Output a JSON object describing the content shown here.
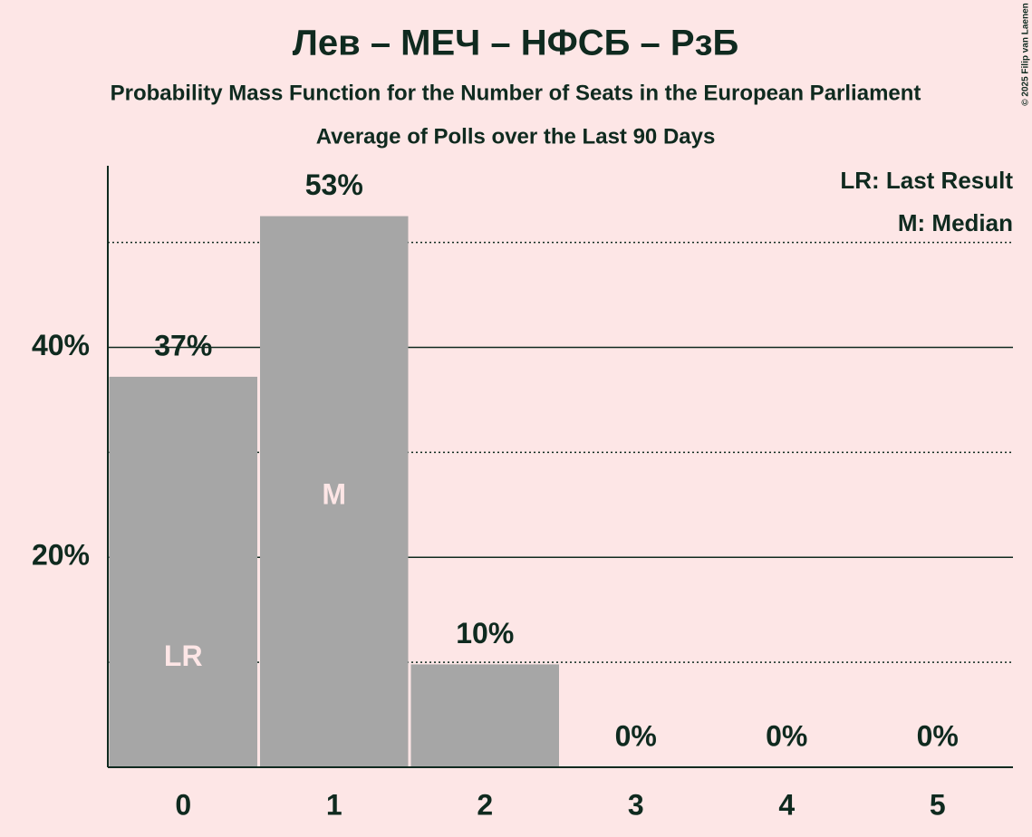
{
  "chart_data": {
    "type": "bar",
    "title": "Лев – МЕЧ – НФСБ – РзБ",
    "subtitle": "Probability Mass Function for the Number of Seats in the European Parliament",
    "subtitle2": "Average of Polls over the Last 90 Days",
    "categories": [
      "0",
      "1",
      "2",
      "3",
      "4",
      "5"
    ],
    "values": [
      37.2,
      52.5,
      9.8,
      0,
      0,
      0
    ],
    "value_labels": [
      "37%",
      "53%",
      "10%",
      "0%",
      "0%",
      "0%"
    ],
    "inner_labels": [
      "LR",
      "M",
      null,
      null,
      null,
      null
    ],
    "legend": [
      "LR: Last Result",
      "M: Median"
    ],
    "legend_position": "top-right",
    "color": "#a6a6a6",
    "ylim": [
      0,
      57.3
    ],
    "yticks": [
      {
        "value": 20,
        "label": "20%"
      },
      {
        "value": 40,
        "label": "40%"
      }
    ],
    "minor_yticks": [
      10,
      30,
      50
    ],
    "grid": true,
    "copyright": "© 2025 Filip van Laenen"
  }
}
